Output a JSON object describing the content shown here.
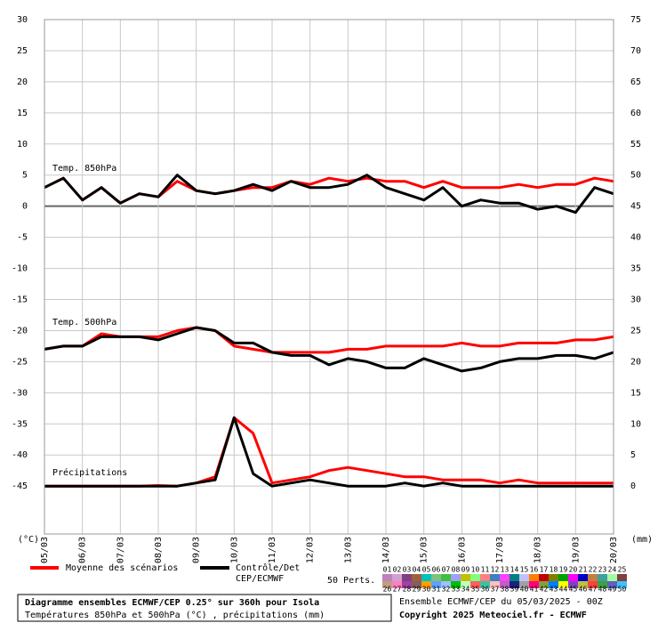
{
  "chart_data": {
    "type": "line",
    "title": "Diagramme ensembles ECMWF/CEP 0.25° sur 360h pour Isola",
    "subtitle": "Températures 850hPa et 500hPa (°C) , précipitations (mm)",
    "run_label": "Ensemble ECMWF/CEP du 05/03/2025 - 00Z",
    "copyright": "Copyright 2025 Meteociel.fr - ECMWF",
    "y_label": "(°C)",
    "y2_label": "(mm)",
    "annotations": [
      "Temp. 850hPa",
      "Temp. 500hPa",
      "Précipitations"
    ],
    "categories": [
      "05/03",
      null,
      "06/03",
      null,
      "07/03",
      null,
      "08/03",
      null,
      "09/03",
      null,
      "10/03",
      null,
      "11/03",
      null,
      "12/03",
      null,
      "13/03",
      null,
      "14/03",
      null,
      "15/03",
      null,
      "16/03",
      null,
      "17/03",
      null,
      "18/03",
      null,
      "19/03",
      null,
      "20/03"
    ],
    "ylim": [
      -52.7,
      30
    ],
    "yticks": [
      30,
      25,
      20,
      15,
      10,
      5,
      0,
      -5,
      -10,
      -15,
      -20,
      -25,
      -30,
      -35,
      -40,
      -45
    ],
    "y2lim": [
      -7.7,
      75
    ],
    "y2ticks": [
      75,
      70,
      65,
      60,
      55,
      50,
      45,
      40,
      35,
      30,
      25,
      20,
      15,
      10,
      5,
      0
    ],
    "grid": true,
    "series": [
      {
        "name": "Moyenne des scénarios",
        "color": "#ff0000",
        "values": [
          3,
          4.5,
          1,
          3,
          0.5,
          2,
          1.5,
          4,
          2.5,
          2,
          2.5,
          3,
          3,
          4,
          3.5,
          4.5,
          4,
          4.5,
          4,
          4,
          3,
          4,
          3,
          3,
          3,
          3.5,
          3,
          3.5,
          3.5,
          4.5,
          4
        ]
      },
      {
        "name": [
          "Contrôle/Det",
          "CEP/ECMWF"
        ],
        "color": "#000000",
        "values": [
          3,
          4.5,
          1,
          3,
          0.5,
          2,
          1.5,
          5,
          2.5,
          2,
          2.5,
          3.5,
          2.5,
          4,
          3,
          3,
          3.5,
          5,
          3,
          2,
          1,
          3,
          0,
          1,
          0.5,
          0.5,
          -0.5,
          0,
          -1,
          3,
          2
        ]
      },
      {
        "color": "#ff0000",
        "values": [
          -23,
          -22.5,
          -22.5,
          -20.5,
          -21,
          -21,
          -21,
          -20,
          -19.5,
          -20,
          -22.5,
          -23,
          -23.5,
          -23.5,
          -23.5,
          -23.5,
          -23,
          -23,
          -22.5,
          -22.5,
          -22.5,
          -22.5,
          -22,
          -22.5,
          -22.5,
          -22,
          -22,
          -22,
          -21.5,
          -21.5,
          -21
        ]
      },
      {
        "color": "#000000",
        "values": [
          -23,
          -22.5,
          -22.5,
          -21,
          -21,
          -21,
          -21.5,
          -20.5,
          -19.5,
          -20,
          -22,
          -22,
          -23.5,
          -24,
          -24,
          -25.5,
          -24.5,
          -25,
          -26,
          -26,
          -24.5,
          -25.5,
          -26.5,
          -26,
          -25,
          -24.5,
          -24.5,
          -24,
          -24,
          -24.5,
          -23.5
        ]
      },
      {
        "color": "#ff0000",
        "axis": "y2",
        "values": [
          0,
          0,
          0,
          0,
          0,
          0,
          0.1,
          0,
          0.5,
          1.5,
          11,
          8.5,
          0.5,
          1,
          1.5,
          2.5,
          3,
          2.5,
          2,
          1.5,
          1.5,
          1,
          1,
          1,
          0.5,
          1,
          0.5,
          0.5,
          0.5,
          0.5,
          0.5
        ]
      },
      {
        "color": "#000000",
        "axis": "y2",
        "values": [
          0,
          0,
          0,
          0,
          0,
          0,
          0,
          0,
          0.5,
          1,
          11,
          2,
          0,
          0.5,
          1,
          0.5,
          0,
          0,
          0,
          0.5,
          0,
          0.5,
          0,
          0,
          0,
          0,
          0,
          0,
          0,
          0,
          0
        ]
      }
    ],
    "perts_label": "50 Perts.",
    "perts": [
      {
        "label": "01",
        "color": "#c080c0"
      },
      {
        "label": "02",
        "color": "#d0a0d0"
      },
      {
        "label": "03",
        "color": "#804080"
      },
      {
        "label": "04",
        "color": "#a06040"
      },
      {
        "label": "05",
        "color": "#00c0c0"
      },
      {
        "label": "06",
        "color": "#80c080"
      },
      {
        "label": "07",
        "color": "#40c040"
      },
      {
        "label": "08",
        "color": "#a0a0ff"
      },
      {
        "label": "09",
        "color": "#c0c000"
      },
      {
        "label": "10",
        "color": "#80ff80"
      },
      {
        "label": "11",
        "color": "#ff8080"
      },
      {
        "label": "12",
        "color": "#4080c0"
      },
      {
        "label": "13",
        "color": "#ff40ff"
      },
      {
        "label": "14",
        "color": "#008080"
      },
      {
        "label": "15",
        "color": "#c0c0ff"
      },
      {
        "label": "16",
        "color": "#ff8000"
      },
      {
        "label": "17",
        "color": "#c00000"
      },
      {
        "label": "18",
        "color": "#808000"
      },
      {
        "label": "19",
        "color": "#00a000"
      },
      {
        "label": "20",
        "color": "#ff00ff"
      },
      {
        "label": "21",
        "color": "#0000c0"
      },
      {
        "label": "22",
        "color": "#c08040"
      },
      {
        "label": "23",
        "color": "#40a0a0"
      },
      {
        "label": "24",
        "color": "#a0ffa0"
      },
      {
        "label": "25",
        "color": "#804040"
      },
      {
        "label": "26",
        "color": "#c0a080"
      },
      {
        "label": "27",
        "color": "#ff80c0"
      },
      {
        "label": "28",
        "color": "#a040a0"
      },
      {
        "label": "29",
        "color": "#806060"
      },
      {
        "label": "30",
        "color": "#ffa000"
      },
      {
        "label": "31",
        "color": "#60a0ff"
      },
      {
        "label": "32",
        "color": "#a0c0ff"
      },
      {
        "label": "33",
        "color": "#00c000"
      },
      {
        "label": "34",
        "color": "#c0ffc0"
      },
      {
        "label": "35",
        "color": "#ff6060"
      },
      {
        "label": "36",
        "color": "#40c0a0"
      },
      {
        "label": "37",
        "color": "#ffc0c0"
      },
      {
        "label": "38",
        "color": "#c060c0"
      },
      {
        "label": "39",
        "color": "#202080"
      },
      {
        "label": "40",
        "color": "#a0a0a0"
      },
      {
        "label": "41",
        "color": "#ff0080"
      },
      {
        "label": "42",
        "color": "#80a040"
      },
      {
        "label": "43",
        "color": "#0080ff"
      },
      {
        "label": "44",
        "color": "#ffff00"
      },
      {
        "label": "45",
        "color": "#8040c0"
      },
      {
        "label": "46",
        "color": "#c0c040"
      },
      {
        "label": "47",
        "color": "#ff4040"
      },
      {
        "label": "48",
        "color": "#40a040"
      },
      {
        "label": "49",
        "color": "#6060c0"
      },
      {
        "label": "50",
        "color": "#40c0ff"
      }
    ]
  }
}
